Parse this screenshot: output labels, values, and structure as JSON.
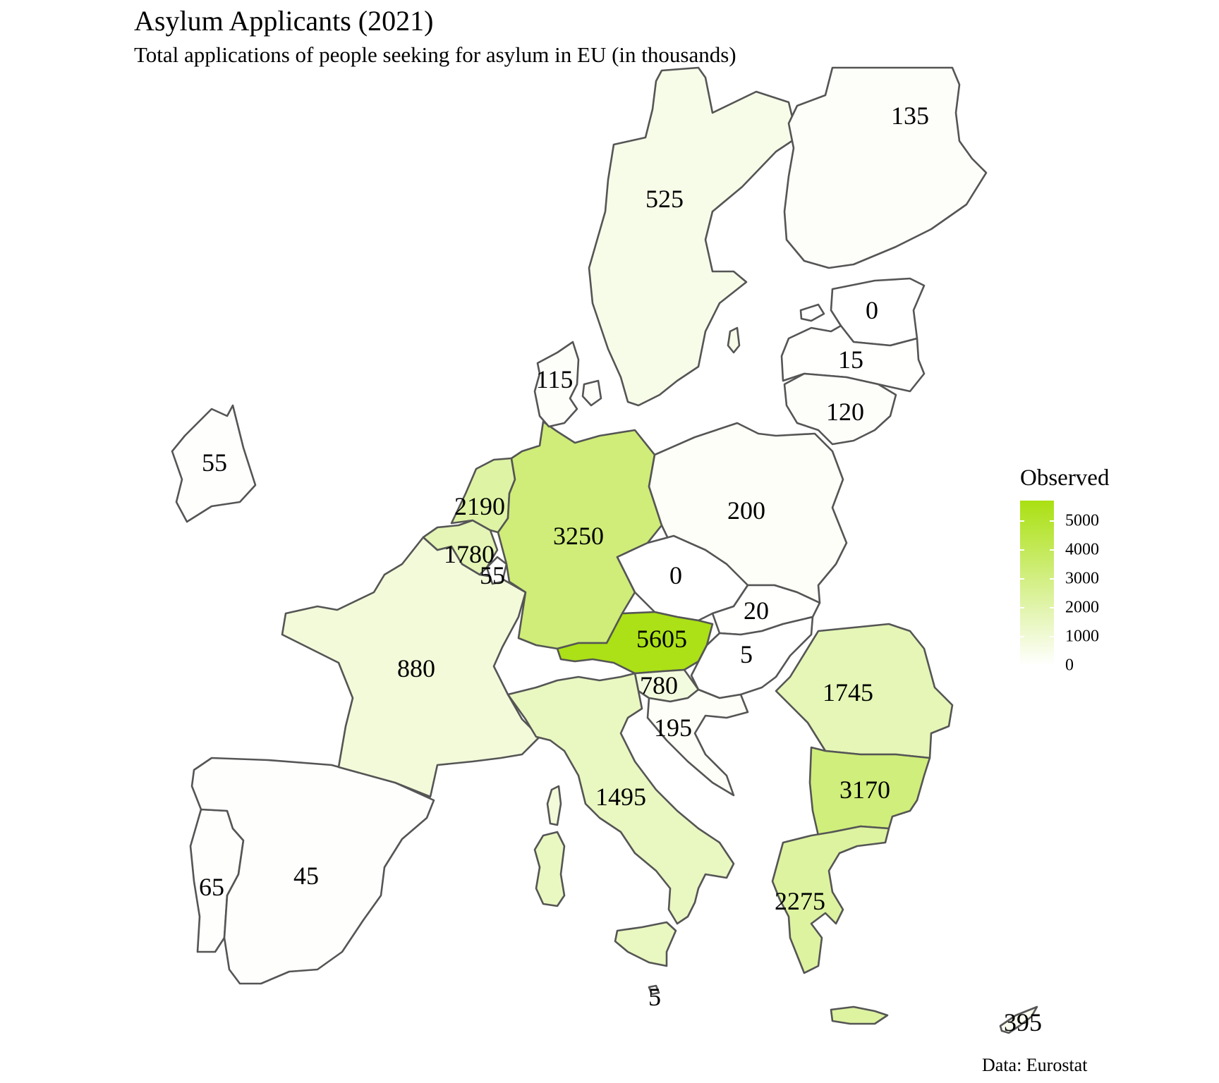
{
  "title": "Asylum Applicants (2021)",
  "subtitle": "Total applications of people seeking for asylum in EU (in thousands)",
  "caption": "Data: Eurostat",
  "legend": {
    "title": "Observed",
    "min": 0,
    "max": 5700,
    "ticks": [
      "5000",
      "4000",
      "3000",
      "2000",
      "1000",
      "0"
    ],
    "tick_values": [
      5000,
      4000,
      3000,
      2000,
      1000,
      0
    ],
    "color_low": "#ffffff",
    "color_high": "#aae012"
  },
  "regions": [
    {
      "id": "ireland",
      "value": 55,
      "label": "55"
    },
    {
      "id": "portugal",
      "value": 65,
      "label": "65"
    },
    {
      "id": "spain",
      "value": 45,
      "label": "45"
    },
    {
      "id": "france",
      "value": 880,
      "label": "880"
    },
    {
      "id": "belgium",
      "value": 1780,
      "label": "1780"
    },
    {
      "id": "netherlands",
      "value": 2190,
      "label": "2190"
    },
    {
      "id": "luxembourg",
      "value": 55,
      "label": "55"
    },
    {
      "id": "germany",
      "value": 3250,
      "label": "3250"
    },
    {
      "id": "denmark",
      "value": 115,
      "label": "115"
    },
    {
      "id": "sweden",
      "value": 525,
      "label": "525"
    },
    {
      "id": "finland",
      "value": 135,
      "label": "135"
    },
    {
      "id": "estonia",
      "value": 0,
      "label": "0"
    },
    {
      "id": "latvia",
      "value": 15,
      "label": "15"
    },
    {
      "id": "lithuania",
      "value": 120,
      "label": "120"
    },
    {
      "id": "poland",
      "value": 200,
      "label": "200"
    },
    {
      "id": "czechia",
      "value": 0,
      "label": "0"
    },
    {
      "id": "slovakia",
      "value": 20,
      "label": "20"
    },
    {
      "id": "austria",
      "value": 5605,
      "label": "5605"
    },
    {
      "id": "hungary",
      "value": 5,
      "label": "5"
    },
    {
      "id": "slovenia",
      "value": 780,
      "label": "780"
    },
    {
      "id": "croatia",
      "value": 195,
      "label": "195"
    },
    {
      "id": "romania",
      "value": 1745,
      "label": "1745"
    },
    {
      "id": "bulgaria",
      "value": 3170,
      "label": "3170"
    },
    {
      "id": "italy",
      "value": 1495,
      "label": "1495"
    },
    {
      "id": "greece",
      "value": 2275,
      "label": "2275"
    },
    {
      "id": "malta",
      "value": 5,
      "label": "5"
    },
    {
      "id": "cyprus",
      "value": 395,
      "label": "395"
    }
  ]
}
